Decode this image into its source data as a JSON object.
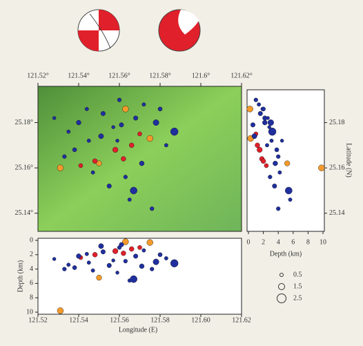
{
  "map": {
    "lon_lim": [
      121.52,
      121.62
    ],
    "lat_lim": [
      25.132,
      25.196
    ],
    "lon_ticks": [
      {
        "value": 121.52,
        "label": "121.52°"
      },
      {
        "value": 121.54,
        "label": "121.54°"
      },
      {
        "value": 121.56,
        "label": "121.56°"
      },
      {
        "value": 121.58,
        "label": "121.58°"
      },
      {
        "value": 121.6,
        "label": "121.6°"
      },
      {
        "value": 121.62,
        "label": "121.62°"
      }
    ],
    "lat_ticks": [
      {
        "value": 25.18,
        "label": "25.18°"
      },
      {
        "value": 25.16,
        "label": "25.16°"
      },
      {
        "value": 25.14,
        "label": "25.14°"
      }
    ]
  },
  "depth_section": {
    "depth_lim": [
      0,
      10
    ],
    "depth_ticks": [
      0,
      2,
      4,
      6,
      8,
      10
    ],
    "lon_ticks": [
      {
        "value": 121.52,
        "label": "121.52"
      },
      {
        "value": 121.54,
        "label": "121.54"
      },
      {
        "value": 121.56,
        "label": "121.56"
      },
      {
        "value": 121.58,
        "label": "121.58"
      },
      {
        "value": 121.6,
        "label": "121.60"
      },
      {
        "value": 121.62,
        "label": "121.62"
      }
    ],
    "x_label": "Longitude (E)",
    "y_label": "Depth (km)"
  },
  "lat_section": {
    "depth_lim": [
      0,
      10
    ],
    "depth_ticks": [
      0,
      2,
      4,
      6,
      8,
      10
    ],
    "lat_ticks": [
      25.18,
      25.16,
      25.14
    ],
    "x_label": "Depth (km)",
    "y_label": "Latitude (N)"
  },
  "legend": {
    "magnitudes": [
      0.5,
      1.5,
      2.5
    ]
  },
  "events": [
    {
      "lon": 121.531,
      "lat": 25.16,
      "depth": 9.8,
      "mag": 1.5,
      "color": "#f39a2b"
    },
    {
      "lon": 121.575,
      "lat": 25.173,
      "depth": 0.3,
      "mag": 1.5,
      "color": "#f39a2b"
    },
    {
      "lon": 121.563,
      "lat": 25.186,
      "depth": 0.2,
      "mag": 1.5,
      "color": "#f39a2b"
    },
    {
      "lon": 121.55,
      "lat": 25.162,
      "depth": 5.2,
      "mag": 1.2,
      "color": "#f39a2b"
    },
    {
      "lon": 121.558,
      "lat": 25.168,
      "depth": 1.5,
      "mag": 1.2,
      "color": "#e0202a"
    },
    {
      "lon": 121.562,
      "lat": 25.164,
      "depth": 1.8,
      "mag": 1.0,
      "color": "#e0202a"
    },
    {
      "lon": 121.548,
      "lat": 25.163,
      "depth": 2.0,
      "mag": 1.0,
      "color": "#e0202a"
    },
    {
      "lon": 121.566,
      "lat": 25.17,
      "depth": 1.2,
      "mag": 1.0,
      "color": "#e0202a"
    },
    {
      "lon": 121.541,
      "lat": 25.161,
      "depth": 2.4,
      "mag": 0.8,
      "color": "#e0202a"
    },
    {
      "lon": 121.57,
      "lat": 25.175,
      "depth": 1.0,
      "mag": 0.8,
      "color": "#e0202a"
    },
    {
      "lon": 121.54,
      "lat": 25.18,
      "depth": 2.2,
      "mag": 1.0,
      "color": "#1f2f9e"
    },
    {
      "lon": 121.545,
      "lat": 25.172,
      "depth": 3.1,
      "mag": 0.6,
      "color": "#1f2f9e"
    },
    {
      "lon": 121.552,
      "lat": 25.184,
      "depth": 1.6,
      "mag": 0.9,
      "color": "#1f2f9e"
    },
    {
      "lon": 121.557,
      "lat": 25.178,
      "depth": 2.8,
      "mag": 0.5,
      "color": "#1f2f9e"
    },
    {
      "lon": 121.56,
      "lat": 25.19,
      "depth": 1.0,
      "mag": 0.7,
      "color": "#1f2f9e"
    },
    {
      "lon": 121.568,
      "lat": 25.182,
      "depth": 2.2,
      "mag": 0.9,
      "color": "#1f2f9e"
    },
    {
      "lon": 121.572,
      "lat": 25.188,
      "depth": 1.4,
      "mag": 0.6,
      "color": "#1f2f9e"
    },
    {
      "lon": 121.578,
      "lat": 25.18,
      "depth": 3.0,
      "mag": 1.4,
      "color": "#1f2f9e"
    },
    {
      "lon": 121.535,
      "lat": 25.176,
      "depth": 3.4,
      "mag": 0.6,
      "color": "#1f2f9e"
    },
    {
      "lon": 121.528,
      "lat": 25.182,
      "depth": 2.6,
      "mag": 0.5,
      "color": "#1f2f9e"
    },
    {
      "lon": 121.538,
      "lat": 25.168,
      "depth": 3.8,
      "mag": 0.8,
      "color": "#1f2f9e"
    },
    {
      "lon": 121.547,
      "lat": 25.158,
      "depth": 4.2,
      "mag": 0.6,
      "color": "#1f2f9e"
    },
    {
      "lon": 121.555,
      "lat": 25.152,
      "depth": 3.5,
      "mag": 0.9,
      "color": "#1f2f9e"
    },
    {
      "lon": 121.563,
      "lat": 25.156,
      "depth": 2.9,
      "mag": 0.7,
      "color": "#1f2f9e"
    },
    {
      "lon": 121.571,
      "lat": 25.162,
      "depth": 3.6,
      "mag": 1.0,
      "color": "#1f2f9e"
    },
    {
      "lon": 121.583,
      "lat": 25.17,
      "depth": 2.5,
      "mag": 0.6,
      "color": "#1f2f9e"
    },
    {
      "lon": 121.587,
      "lat": 25.176,
      "depth": 3.2,
      "mag": 2.0,
      "color": "#1f2f9e"
    },
    {
      "lon": 121.576,
      "lat": 25.142,
      "depth": 4.0,
      "mag": 0.7,
      "color": "#1f2f9e"
    },
    {
      "lon": 121.565,
      "lat": 25.146,
      "depth": 5.6,
      "mag": 0.6,
      "color": "#1f2f9e"
    },
    {
      "lon": 121.551,
      "lat": 25.174,
      "depth": 0.8,
      "mag": 1.1,
      "color": "#1f2f9e"
    },
    {
      "lon": 121.559,
      "lat": 25.172,
      "depth": 4.5,
      "mag": 0.5,
      "color": "#1f2f9e"
    },
    {
      "lon": 121.533,
      "lat": 25.165,
      "depth": 4.0,
      "mag": 0.7,
      "color": "#1f2f9e"
    },
    {
      "lon": 121.544,
      "lat": 25.186,
      "depth": 1.9,
      "mag": 0.6,
      "color": "#1f2f9e"
    },
    {
      "lon": 121.58,
      "lat": 25.186,
      "depth": 2.0,
      "mag": 0.8,
      "color": "#1f2f9e"
    },
    {
      "lon": 121.567,
      "lat": 25.15,
      "depth": 5.4,
      "mag": 1.8,
      "color": "#1f2f9e"
    },
    {
      "lon": 121.561,
      "lat": 25.179,
      "depth": 0.6,
      "mag": 0.9,
      "color": "#1f2f9e"
    }
  ]
}
